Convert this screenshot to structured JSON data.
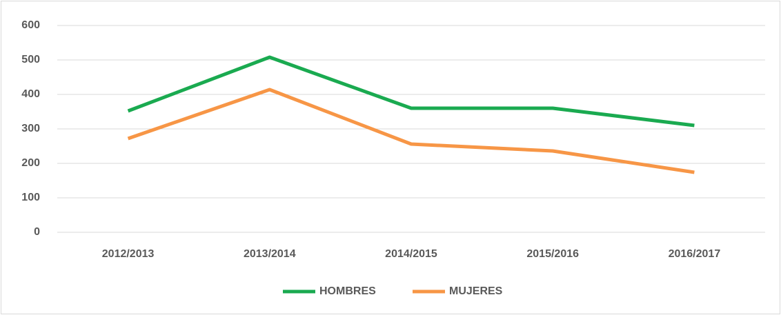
{
  "chart_data": {
    "type": "line",
    "categories": [
      "2012/2013",
      "2013/2014",
      "2014/2015",
      "2015/2016",
      "2016/2017"
    ],
    "series": [
      {
        "name": "HOMBRES",
        "color": "#1aaa50",
        "values": [
          352,
          508,
          360,
          360,
          310
        ]
      },
      {
        "name": "MUJERES",
        "color": "#f79646",
        "values": [
          272,
          414,
          256,
          236,
          174
        ]
      }
    ],
    "ylim": [
      0,
      600
    ],
    "yticks": [
      0,
      100,
      200,
      300,
      400,
      500,
      600
    ],
    "grid": true,
    "legend": "bottom"
  }
}
